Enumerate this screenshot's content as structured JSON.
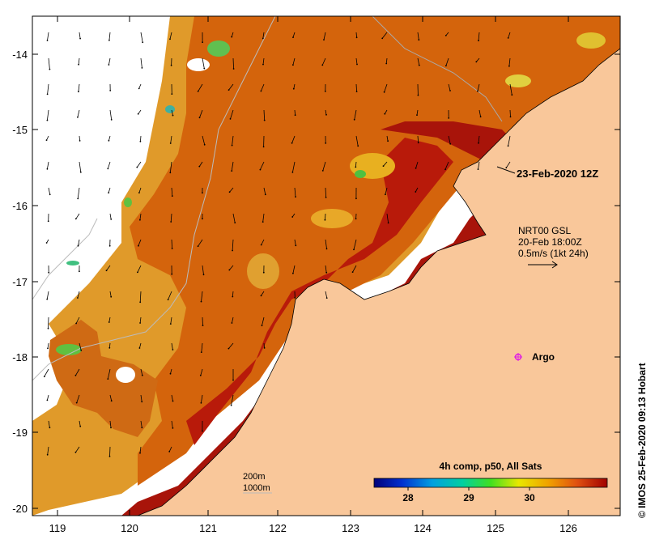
{
  "map": {
    "lat_ticks": [
      "-14",
      "-15",
      "-16",
      "-17",
      "-18",
      "-19",
      "-20"
    ],
    "lon_ticks": [
      "119",
      "120",
      "121",
      "122",
      "123",
      "124",
      "125",
      "126"
    ],
    "timestamp_label": "23-Feb-2020 12Z",
    "current_legend": {
      "line1": "NRT00 GSL",
      "line2": "20-Feb 18:00Z",
      "line3": "0.5m/s (1kt 24h)"
    },
    "argo_label": "Argo",
    "contours": {
      "label1": "200m",
      "label2": "1000m"
    },
    "colorbar": {
      "title": "4h comp, p50, All Sats",
      "ticks": [
        "28",
        "29",
        "30"
      ]
    },
    "credit": "© IMOS 25-Feb-2020 09:13 Hobart",
    "colors": {
      "land": "#f9c79a",
      "sst_warm": "#b01405",
      "sst_mid": "#d9620e",
      "sst_cool": "#e8a020",
      "argo": "#e020e0"
    }
  }
}
